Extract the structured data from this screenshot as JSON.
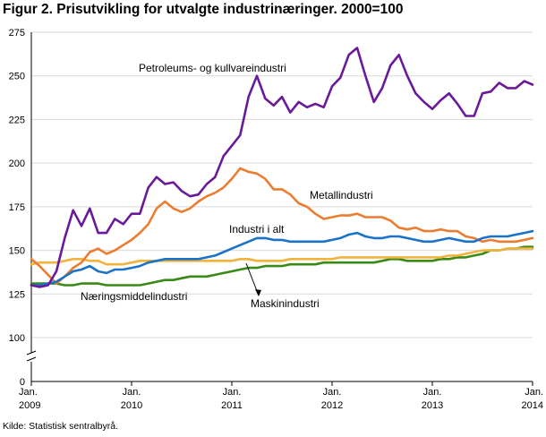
{
  "figure": {
    "title": "Figur 2. Prisutvikling for utvalgte industrinæringer. 2000=100",
    "source": "Kilde: Statistisk sentralbyrå."
  },
  "colors": {
    "petroleum": "#6a1a99",
    "metall": "#ec7c30",
    "industri": "#1a73c8",
    "naeringsmiddel": "#f2b33d",
    "maskin": "#3a8a18",
    "grid": "#d9d9d9",
    "axis": "#000000"
  },
  "chart_data": {
    "type": "line",
    "title": "Figur 2. Prisutvikling for utvalgte industrinæringer. 2000=100",
    "xlabel": "",
    "ylabel": "",
    "ylim": [
      100,
      275
    ],
    "axis_break": true,
    "grid": true,
    "y_ticks": [
      "0",
      "100",
      "125",
      "150",
      "175",
      "200",
      "225",
      "250",
      "275"
    ],
    "x_ticks": [
      {
        "month_index": 0,
        "line1": "Jan.",
        "line2": "2009"
      },
      {
        "month_index": 12,
        "line1": "Jan.",
        "line2": "2010"
      },
      {
        "month_index": 24,
        "line1": "Jan.",
        "line2": "2011"
      },
      {
        "month_index": 36,
        "line1": "Jan.",
        "line2": "2012"
      },
      {
        "month_index": 48,
        "line1": "Jan.",
        "line2": "2013"
      },
      {
        "month_index": 60,
        "line1": "Jan.",
        "line2": "2014"
      }
    ],
    "series": [
      {
        "key": "petroleum",
        "name": "Petroleums- og kullvareindustri",
        "values": [
          130,
          129,
          130,
          138,
          157,
          173,
          164,
          174,
          160,
          160,
          168,
          165,
          171,
          171,
          186,
          192,
          188,
          189,
          184,
          181,
          182,
          188,
          192,
          204,
          210,
          216,
          238,
          250,
          237,
          233,
          238,
          229,
          235,
          232,
          234,
          232,
          244,
          249,
          262,
          266,
          250,
          235,
          243,
          256,
          262,
          250,
          240,
          235,
          231,
          236,
          240,
          234,
          227,
          227,
          240,
          241,
          246,
          243,
          243,
          247,
          245
        ]
      },
      {
        "key": "metall",
        "name": "Metallindustri",
        "values": [
          145,
          141,
          136,
          131,
          135,
          140,
          143,
          149,
          151,
          148,
          150,
          153,
          156,
          160,
          165,
          174,
          178,
          174,
          172,
          174,
          178,
          181,
          183,
          186,
          191,
          197,
          195,
          194,
          191,
          185,
          185,
          182,
          177,
          175,
          171,
          168,
          169,
          170,
          170,
          171,
          169,
          169,
          169,
          167,
          163,
          162,
          163,
          161,
          161,
          162,
          161,
          161,
          158,
          157,
          155,
          156,
          155,
          155,
          155,
          156,
          157
        ]
      },
      {
        "key": "industri",
        "name": "Industri i alt",
        "values": [
          130,
          130,
          131,
          132,
          135,
          138,
          139,
          141,
          138,
          137,
          139,
          139,
          140,
          141,
          143,
          144,
          145,
          145,
          145,
          145,
          145,
          146,
          147,
          149,
          151,
          153,
          155,
          157,
          157,
          156,
          156,
          155,
          155,
          155,
          155,
          155,
          156,
          157,
          159,
          160,
          158,
          157,
          157,
          158,
          158,
          157,
          156,
          155,
          155,
          156,
          157,
          156,
          155,
          155,
          157,
          158,
          158,
          158,
          159,
          160,
          161
        ]
      },
      {
        "key": "naeringsmiddel",
        "name": "Næringsmiddelindustri",
        "values": [
          142,
          143,
          143,
          143,
          144,
          145,
          145,
          144,
          144,
          142,
          142,
          142,
          143,
          144,
          144,
          144,
          144,
          144,
          144,
          144,
          144,
          144,
          144,
          144,
          144,
          145,
          145,
          144,
          144,
          144,
          144,
          145,
          145,
          145,
          145,
          145,
          145,
          146,
          146,
          146,
          146,
          146,
          146,
          146,
          146,
          146,
          146,
          146,
          146,
          146,
          147,
          147,
          148,
          149,
          150,
          150,
          150,
          151,
          151,
          151,
          151
        ]
      },
      {
        "key": "maskin",
        "name": "Maskinindustri",
        "values": [
          131,
          131,
          131,
          131,
          130,
          130,
          131,
          131,
          131,
          130,
          130,
          130,
          130,
          130,
          131,
          132,
          133,
          133,
          134,
          135,
          135,
          135,
          136,
          137,
          138,
          139,
          140,
          140,
          141,
          141,
          141,
          142,
          142,
          142,
          142,
          143,
          143,
          143,
          143,
          143,
          143,
          143,
          144,
          145,
          145,
          144,
          144,
          144,
          144,
          145,
          145,
          146,
          146,
          147,
          148,
          150,
          150,
          151,
          151,
          152,
          152
        ]
      }
    ],
    "annotations": [
      {
        "key": "petroleum",
        "text": "Petroleums- og kullvareindustri"
      },
      {
        "key": "metall",
        "text": "Metallindustri"
      },
      {
        "key": "industri",
        "text": "Industri i alt"
      },
      {
        "key": "naeringsmiddel",
        "text": "Næringsmiddelindustri"
      },
      {
        "key": "maskin",
        "text": "Maskinindustri"
      }
    ]
  }
}
